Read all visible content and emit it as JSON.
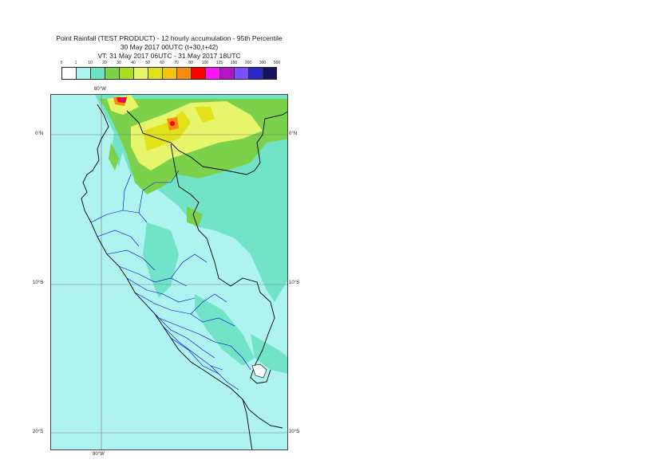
{
  "title": {
    "line1": "Point Rainfall (TEST PRODUCT) - 12 hourly accumulation - 95th Percentile",
    "line2": "30 May 2017 00UTC (t+30,t+42)",
    "line3": "VT: 31 May 2017 06UTC - 31 May 2017 18UTC"
  },
  "colorbar": {
    "labels": [
      "0",
      "1",
      "10",
      "20",
      "30",
      "40",
      "50",
      "60",
      "70",
      "80",
      "100",
      "125",
      "150",
      "200",
      "300",
      "500"
    ],
    "colors": [
      "#ffffff",
      "#aef3f0",
      "#6ee3c4",
      "#7bd24a",
      "#a6e01e",
      "#e6f56a",
      "#e2e21a",
      "#f5c210",
      "#fa8a10",
      "#ff0000",
      "#ff14ff",
      "#b414c8",
      "#7850ff",
      "#2828c8",
      "#14145a"
    ]
  },
  "map": {
    "lon_label_top": "80°W",
    "lon_label_bottom": "80°W",
    "lat_labels": [
      "0°N",
      "10°S",
      "20°S"
    ],
    "ocean_color": "#aef3f0",
    "border_color": "#000000",
    "region_color": "#0000cc"
  }
}
